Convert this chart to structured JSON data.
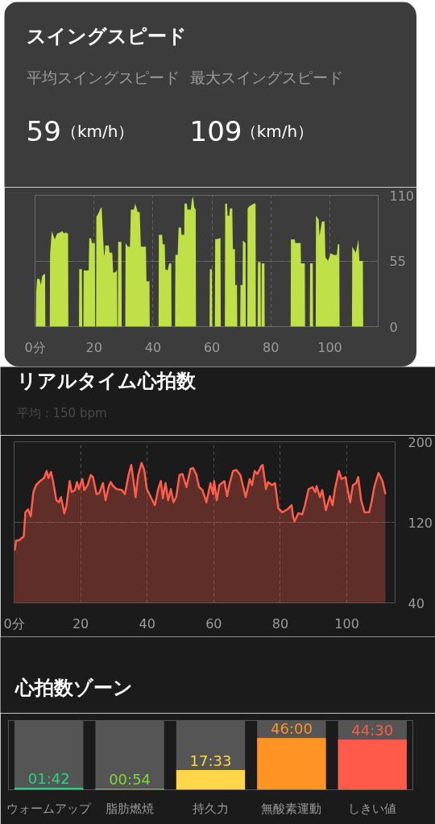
{
  "chart_data": [
    {
      "type": "area",
      "title": "スイングスピード",
      "annotations": [
        "平均スイングスピード",
        "最大スイングスピード",
        "59",
        "（km/h）",
        "109",
        "（km/h）"
      ],
      "x": [
        0,
        0.3,
        0.4,
        0.7,
        1.5,
        2.0,
        2.4,
        3.0,
        3.4,
        3.5,
        5.0,
        5.1,
        5.7,
        6.7,
        7.5,
        8.5,
        9.3,
        9.8,
        10.4,
        11.2,
        11.3,
        14.9,
        15.0,
        15.9,
        16.0,
        16.4,
        16.5,
        18.2,
        18.4,
        19.0,
        19.3,
        20.3,
        20.4,
        20.7,
        20.8,
        21.5,
        22.2,
        22.6,
        22.8,
        23.4,
        23.6,
        23.8,
        25.0,
        25.3,
        26.2,
        26.5,
        27.5,
        27.8,
        27.9,
        28.1,
        28.2,
        29.3,
        29.4,
        30.6,
        30.7,
        31.5,
        32.2,
        32.5,
        33.5,
        34.0,
        34.8,
        35.5,
        35.9,
        37.6,
        37.8,
        38.8,
        38.9,
        41.9,
        42.0,
        43.1,
        43.3,
        44.0,
        44.2,
        45.0,
        45.5,
        46.2,
        46.3,
        47.5,
        47.6,
        48.4,
        48.7,
        49.5,
        49.7,
        50.6,
        50.7,
        51.5,
        51.7,
        52.8,
        53.2,
        53.6,
        54.0,
        54.5,
        54.6,
        59.2,
        59.3,
        60.0,
        60.1,
        61.0,
        61.1,
        62.9,
        63.0,
        64.4,
        64.5,
        65.1,
        65.3,
        65.9,
        66.1,
        66.9,
        67.1,
        67.8,
        67.9,
        68.5,
        68.6,
        69.6,
        69.7,
        70.4,
        70.5,
        71.4,
        71.5,
        72.0,
        72.1,
        72.8,
        73.6,
        74.2,
        74.8,
        74.9,
        75.5,
        75.6,
        76.5,
        76.6,
        76.8,
        76.9,
        77.8,
        77.9,
        86.7,
        86.8,
        88.1,
        88.3,
        90.1,
        90.2,
        91.5,
        91.6,
        93.2,
        93.3,
        94.2,
        94.3,
        95.2,
        95.3,
        96.2,
        96.5,
        97.3,
        98.2,
        98.5,
        99.4,
        100.2,
        100.7,
        101.2,
        102.4,
        102.7,
        103.2,
        103.3,
        107.5,
        107.6,
        108.8,
        109.7,
        110.0,
        111.2,
        111.3
      ],
      "values": [
        0,
        0,
        29,
        40,
        40,
        35,
        42,
        44,
        44,
        0,
        0,
        61,
        80,
        73,
        78,
        79,
        80,
        78,
        79,
        78,
        0,
        0,
        48,
        48,
        0,
        0,
        47,
        47,
        74,
        74,
        70,
        70,
        0,
        0,
        92,
        95,
        99,
        100,
        89,
        60,
        60,
        68,
        68,
        62,
        62,
        45,
        46,
        48,
        0,
        0,
        71,
        71,
        0,
        0,
        70,
        67,
        67,
        98,
        98,
        103,
        96,
        96,
        67,
        67,
        38,
        38,
        0,
        0,
        77,
        77,
        69,
        69,
        48,
        47,
        53,
        53,
        0,
        0,
        60,
        60,
        83,
        83,
        77,
        77,
        103,
        103,
        98,
        98,
        106,
        109,
        100,
        98,
        0,
        0,
        48,
        48,
        0,
        0,
        73,
        74,
        0,
        0,
        103,
        103,
        93,
        93,
        99,
        99,
        65,
        65,
        35,
        35,
        0,
        0,
        35,
        35,
        72,
        70,
        0,
        0,
        99,
        101,
        102,
        103,
        103,
        0,
        0,
        54,
        54,
        0,
        0,
        53,
        53,
        0,
        0,
        73,
        73,
        70,
        70,
        53,
        53,
        0,
        0,
        53,
        53,
        0,
        0,
        93,
        90,
        76,
        88,
        88,
        58,
        55,
        61,
        61,
        60,
        60,
        69,
        69,
        0,
        0,
        67,
        62,
        73,
        55,
        55,
        0
      ],
      "color": "#bfe046",
      "xlim": [
        0,
        116.4
      ],
      "xticks": [
        {
          "value": 0,
          "label": "0分"
        },
        20,
        40,
        60,
        80,
        100
      ],
      "ylim": [
        0,
        110
      ],
      "yticks": [
        0,
        55,
        110
      ],
      "grid": true
    },
    {
      "type": "area",
      "title": "リアルタイム心拍数",
      "subtitle": "平均：150 bpm",
      "x": [
        0.2,
        0.6,
        1.4,
        2.9,
        3.4,
        4.2,
        5.0,
        5.8,
        6.6,
        7.8,
        9.0,
        9.8,
        10.3,
        11.1,
        11.7,
        12.7,
        13.5,
        14.1,
        15.1,
        15.7,
        16.7,
        17.3,
        18.3,
        18.9,
        19.5,
        20.5,
        21.1,
        22.1,
        23.0,
        23.7,
        24.8,
        25.6,
        26.7,
        27.5,
        28.4,
        29.0,
        29.8,
        30.8,
        32.4,
        33.3,
        34.4,
        35.2,
        35.9,
        36.5,
        37.3,
        38.3,
        39.1,
        39.9,
        41.1,
        42.3,
        43.3,
        44.1,
        44.7,
        45.5,
        46.3,
        47.1,
        47.9,
        48.7,
        49.7,
        50.6,
        51.8,
        53.0,
        53.8,
        54.8,
        55.6,
        56.6,
        57.8,
        59.0,
        59.8,
        60.1,
        60.9,
        61.7,
        63.2,
        64.0,
        64.8,
        65.8,
        66.8,
        68.0,
        69.6,
        70.8,
        71.5,
        72.3,
        73.1,
        74.3,
        74.7,
        75.7,
        76.3,
        77.5,
        78.4,
        79.4,
        80.6,
        82.2,
        83.4,
        83.8,
        84.3,
        85.4,
        86.6,
        87.4,
        88.5,
        89.7,
        90.5,
        90.9,
        91.9,
        92.6,
        93.7,
        94.9,
        95.7,
        96.4,
        97.6,
        98.4,
        99.6,
        100.0,
        101.0,
        101.8,
        102.8,
        103.4,
        104.3,
        105.3,
        106.7,
        107.4,
        108.3,
        109.5,
        110.7,
        111.6
      ],
      "values": [
        92,
        102,
        102,
        106,
        130,
        133,
        126,
        150,
        157,
        161,
        164,
        171,
        164,
        170,
        161,
        142,
        140,
        145,
        129,
        136,
        161,
        150,
        152,
        160,
        153,
        163,
        152,
        157,
        167,
        165,
        148,
        149,
        159,
        142,
        155,
        160,
        156,
        153,
        152,
        148,
        167,
        177,
        161,
        145,
        167,
        179,
        172,
        153,
        145,
        137,
        153,
        161,
        144,
        159,
        142,
        153,
        140,
        145,
        167,
        168,
        155,
        173,
        174,
        167,
        155,
        152,
        140,
        159,
        148,
        161,
        142,
        157,
        161,
        146,
        159,
        171,
        172,
        167,
        145,
        163,
        157,
        171,
        168,
        176,
        177,
        153,
        160,
        157,
        159,
        134,
        130,
        133,
        137,
        126,
        121,
        129,
        128,
        137,
        153,
        155,
        150,
        156,
        145,
        152,
        132,
        146,
        137,
        153,
        171,
        163,
        165,
        157,
        140,
        157,
        159,
        165,
        142,
        130,
        130,
        140,
        156,
        169,
        161,
        148
      ],
      "color": "#ff5d4b",
      "xlim": [
        0,
        114.5
      ],
      "xticks": [
        {
          "value": 0,
          "label": "0分"
        },
        20,
        40,
        60,
        80,
        100
      ],
      "ylim": [
        40,
        200
      ],
      "yticks": [
        40,
        120,
        200
      ],
      "grid": true
    },
    {
      "type": "bar",
      "title": "心拍数ゾーン",
      "categories": [
        "ウォームアップ",
        "脂肪燃焼",
        "持久力",
        "無酸素運動",
        "しきい値"
      ],
      "values": [
        1.7,
        0.9,
        17.55,
        46,
        44.5
      ],
      "colors": [
        "#2bd283",
        "#7ed63a",
        "#ffd54a",
        "#ff9424",
        "#ff5a4a"
      ],
      "value_labels": [
        "01:42",
        "00:54",
        "17:33",
        "46:00",
        "44:30"
      ],
      "ylim": [
        0,
        61.5
      ],
      "tick_labels": "x"
    }
  ]
}
